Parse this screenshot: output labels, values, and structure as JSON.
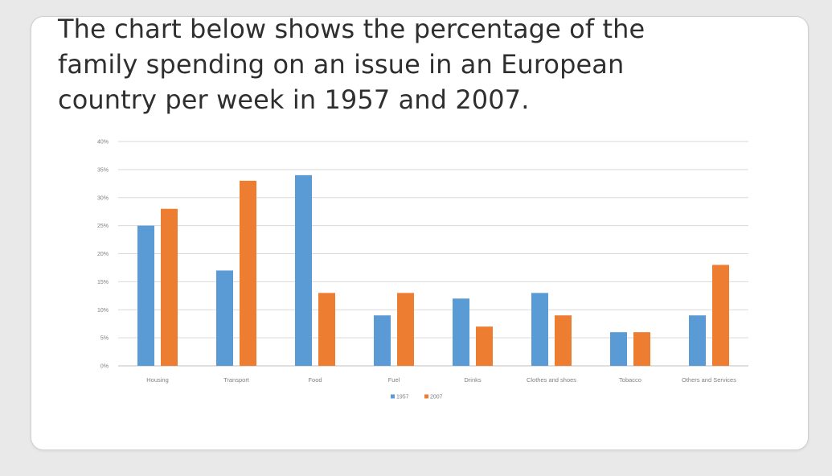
{
  "slide": {
    "title": "The chart below shows the percentage of the family spending on an issue in an European country per week in 1957 and 2007."
  },
  "chart_data": {
    "type": "bar",
    "title": "",
    "xlabel": "",
    "ylabel": "",
    "categories": [
      "Housing",
      "Transport",
      "Food",
      "Fuel",
      "Drinks",
      "Clothes and shoes",
      "Tobacco",
      "Others and Services"
    ],
    "series": [
      {
        "name": "1957",
        "color": "#5b9bd5",
        "values": [
          25,
          17,
          34,
          9,
          12,
          13,
          6,
          9
        ]
      },
      {
        "name": "2007",
        "color": "#ed7d31",
        "values": [
          28,
          33,
          13,
          13,
          7,
          9,
          6,
          18
        ]
      }
    ],
    "ylim": [
      0,
      40
    ],
    "yticks": [
      0,
      5,
      10,
      15,
      20,
      25,
      30,
      35,
      40
    ],
    "ytick_labels": [
      "0%",
      "5%",
      "10%",
      "15%",
      "20%",
      "25%",
      "30%",
      "35%",
      "40%"
    ],
    "grid": true,
    "legend_position": "bottom"
  }
}
